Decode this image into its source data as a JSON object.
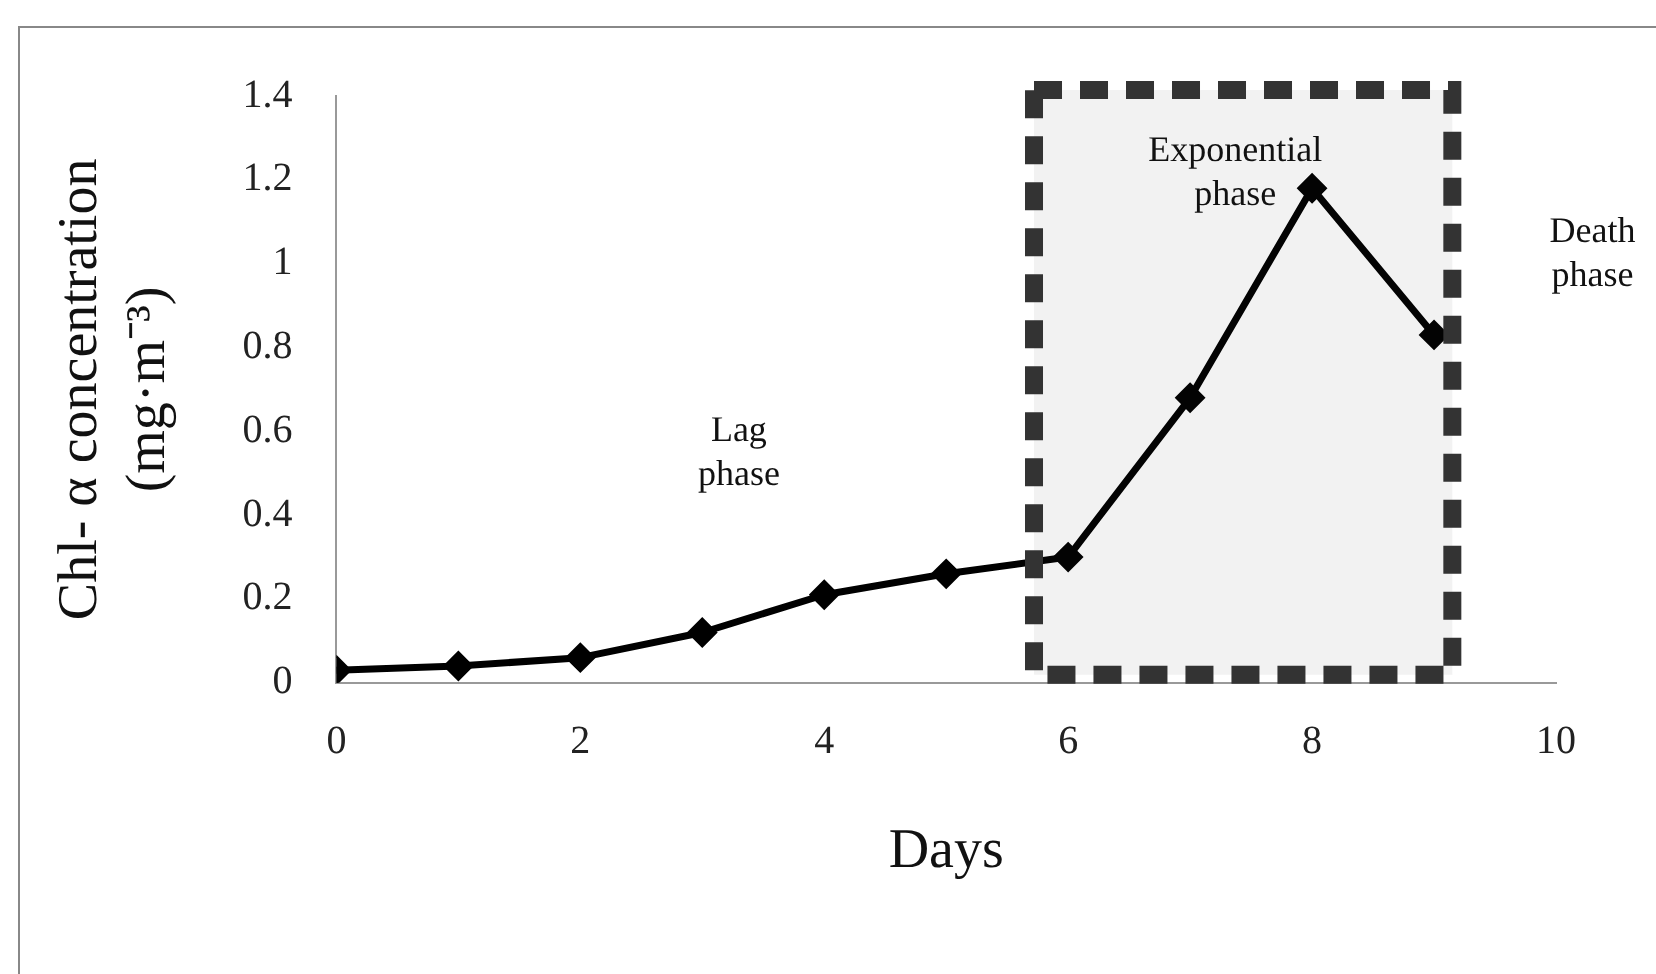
{
  "chart_data": {
    "type": "line",
    "xlabel": "Days",
    "ylabel": "Chl- α concentration\n(mg·m⁻³)",
    "x": [
      0,
      1,
      2,
      3,
      4,
      5,
      6,
      7,
      8,
      9
    ],
    "series": [
      {
        "color": "#000000",
        "values": [
          0.03,
          0.04,
          0.06,
          0.12,
          0.21,
          0.26,
          0.3,
          0.68,
          1.18,
          0.83
        ]
      }
    ],
    "xlim": [
      0,
      10
    ],
    "xticks": [
      0,
      2,
      4,
      6,
      8,
      10
    ],
    "ylim": [
      0,
      1.4
    ],
    "yticks": [
      0,
      0.2,
      0.4,
      0.6,
      0.8,
      1,
      1.2,
      1.4
    ],
    "grid": false,
    "legend": false,
    "marker": "diamond",
    "line_style": "solid",
    "bands": [
      {
        "axis": "x",
        "from": 5.72,
        "to": 9.15,
        "label": "Exponential phase",
        "color": "#333333"
      }
    ],
    "annotations": [
      "Lag phase",
      "Death phase"
    ]
  }
}
